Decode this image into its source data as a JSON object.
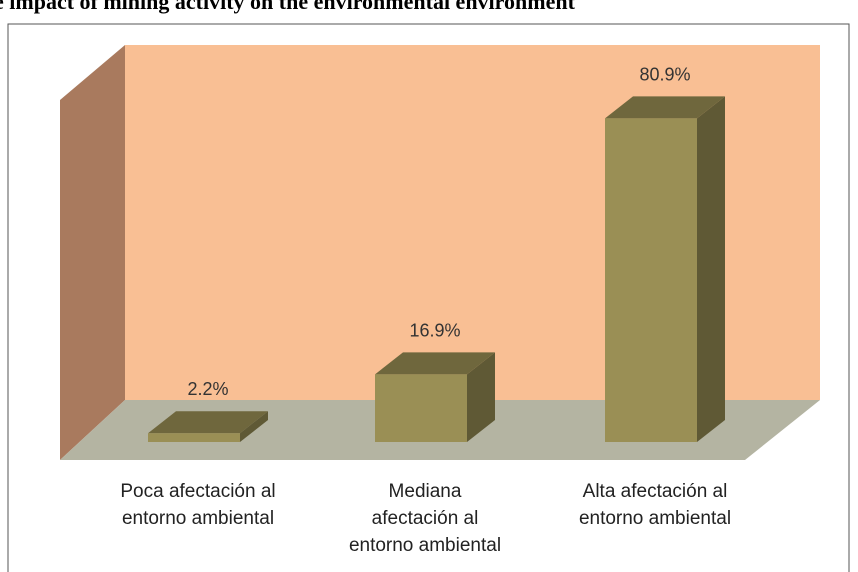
{
  "chart_data": {
    "type": "bar3d",
    "title": "e impact of mining activity on the environmental environment",
    "categories": [
      "Poca afectación al\nentorno ambiental",
      "Mediana\nafectación al\nentorno ambiental",
      "Alta afectación al\nentorno ambiental"
    ],
    "values": [
      2.2,
      16.9,
      80.9
    ],
    "value_labels": [
      "2.2%",
      "16.9%",
      "80.9%"
    ],
    "color": "#9a8f55"
  }
}
